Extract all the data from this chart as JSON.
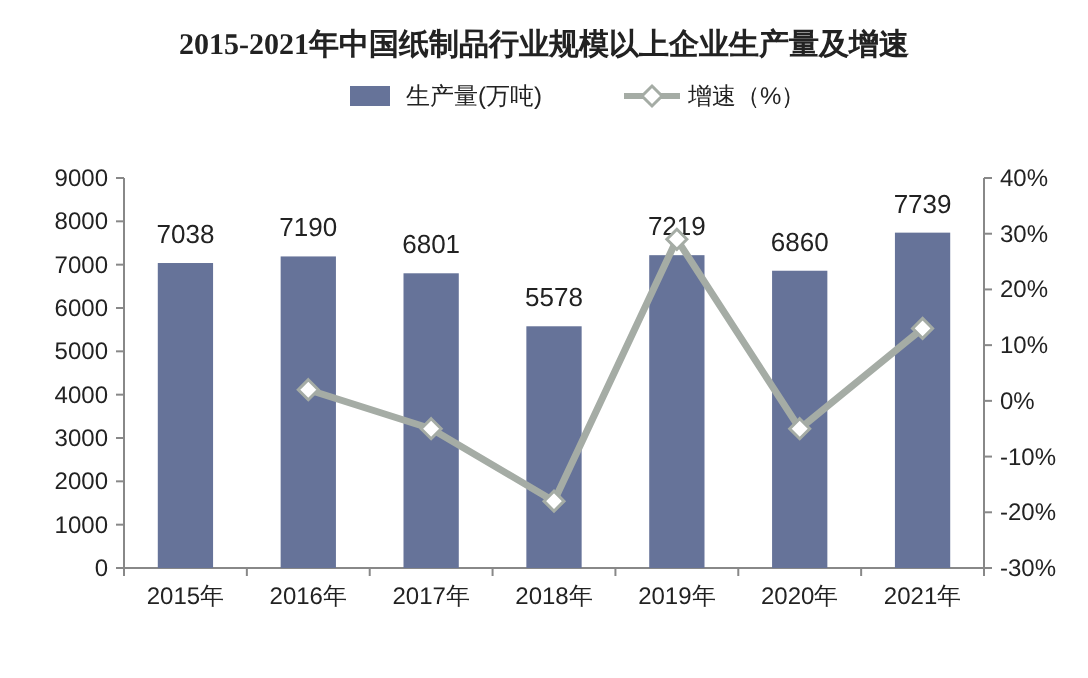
{
  "chart_data": {
    "type": "bar",
    "title": "2015-2021年中国纸制品行业规模以上企业生产量及增速",
    "categories": [
      "2015年",
      "2016年",
      "2017年",
      "2018年",
      "2019年",
      "2020年",
      "2021年"
    ],
    "series": [
      {
        "name": "生产量(万吨)",
        "color": "#667399",
        "values": [
          7038,
          7190,
          6801,
          5578,
          7219,
          6860,
          7739
        ],
        "value_labels": [
          "7038",
          "7190",
          "6801",
          "5578",
          "7219",
          "6860",
          "7739"
        ]
      },
      {
        "name": "增速（%）",
        "type": "line",
        "axis": "y2",
        "color": "#a5aca5",
        "marker": "diamond",
        "values": [
          null,
          2,
          -5,
          -18,
          29,
          -5,
          13
        ]
      }
    ],
    "ylim": [
      0,
      9000
    ],
    "yticks": [
      0,
      1000,
      2000,
      3000,
      4000,
      5000,
      6000,
      7000,
      8000,
      9000
    ],
    "y2lim": [
      -30,
      40
    ],
    "y2ticks": [
      {
        "value": -30,
        "label": "-30%"
      },
      {
        "value": -20,
        "label": "-20%"
      },
      {
        "value": -10,
        "label": "-10%"
      },
      {
        "value": 0,
        "label": "0%"
      },
      {
        "value": 10,
        "label": "10%"
      },
      {
        "value": 20,
        "label": "20%"
      },
      {
        "value": 30,
        "label": "30%"
      },
      {
        "value": 40,
        "label": "40%"
      }
    ],
    "legend": "top"
  }
}
